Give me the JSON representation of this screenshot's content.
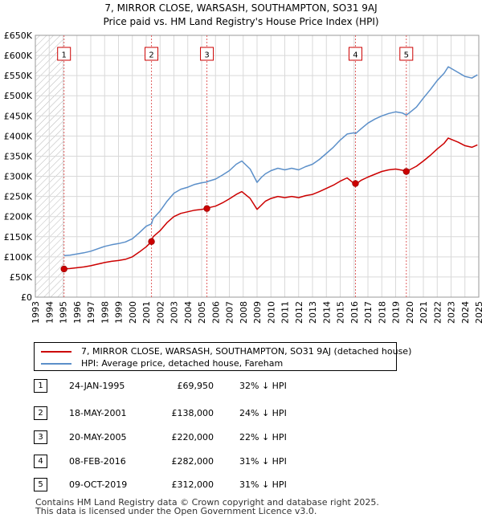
{
  "chart_data": {
    "type": "line",
    "title": "7, MIRROR CLOSE, WARSASH, SOUTHAMPTON, SO31 9AJ",
    "subtitle": "Price paid vs. HM Land Registry's House Price Index (HPI)",
    "xlabel": "",
    "ylabel": "",
    "xlim": [
      1993,
      2025
    ],
    "ylim": [
      0,
      650000
    ],
    "y_ticks": [
      0,
      50000,
      100000,
      150000,
      200000,
      250000,
      300000,
      350000,
      400000,
      450000,
      500000,
      550000,
      600000,
      650000
    ],
    "y_tick_labels": [
      "£0",
      "£50K",
      "£100K",
      "£150K",
      "£200K",
      "£250K",
      "£300K",
      "£350K",
      "£400K",
      "£450K",
      "£500K",
      "£550K",
      "£600K",
      "£650K"
    ],
    "x_ticks": [
      1993,
      1994,
      1995,
      1996,
      1997,
      1998,
      1999,
      2000,
      2001,
      2002,
      2003,
      2004,
      2005,
      2006,
      2007,
      2008,
      2009,
      2010,
      2011,
      2012,
      2013,
      2014,
      2015,
      2016,
      2017,
      2018,
      2019,
      2020,
      2021,
      2022,
      2023,
      2024,
      2025
    ],
    "x_tick_labels": [
      "1993",
      "1994",
      "1995",
      "1996",
      "1997",
      "1998",
      "1999",
      "2000",
      "2001",
      "2002",
      "2003",
      "2004",
      "2005",
      "2006",
      "2007",
      "2008",
      "2009",
      "2010",
      "2011",
      "2012",
      "2013",
      "2014",
      "2015",
      "2016",
      "2017",
      "2018",
      "2019",
      "2020",
      "2021",
      "2022",
      "2023",
      "2024",
      "2025"
    ],
    "grid": true,
    "hatched_until": 1995.07,
    "series": [
      {
        "name": "7, MIRROR CLOSE, WARSASH, SOUTHAMPTON, SO31 9AJ (detached house)",
        "color": "#cc0000",
        "x": [
          1995.07,
          1995.5,
          1996.0,
          1996.5,
          1997.0,
          1997.5,
          1998.0,
          1998.5,
          1999.0,
          1999.5,
          2000.0,
          2000.5,
          2001.0,
          2001.38,
          2001.5,
          2002.0,
          2002.5,
          2003.0,
          2003.5,
          2004.0,
          2004.5,
          2005.0,
          2005.38,
          2005.5,
          2006.0,
          2006.5,
          2007.0,
          2007.5,
          2007.9,
          2008.5,
          2009.0,
          2009.3,
          2009.6,
          2010.0,
          2010.5,
          2011.0,
          2011.5,
          2012.0,
          2012.5,
          2013.0,
          2013.5,
          2014.0,
          2014.5,
          2015.0,
          2015.5,
          2016.0,
          2016.1,
          2016.5,
          2017.0,
          2017.5,
          2018.0,
          2018.5,
          2019.0,
          2019.5,
          2019.77,
          2020.0,
          2020.5,
          2021.0,
          2021.5,
          2022.0,
          2022.5,
          2022.8,
          2023.0,
          2023.5,
          2024.0,
          2024.5,
          2024.9
        ],
        "values": [
          69950,
          71000,
          73000,
          75000,
          78000,
          82000,
          86000,
          89000,
          91000,
          94000,
          100000,
          112000,
          125000,
          138000,
          150000,
          165000,
          185000,
          200000,
          208000,
          212000,
          216000,
          218000,
          220000,
          222000,
          226000,
          234000,
          244000,
          255000,
          262000,
          245000,
          218000,
          228000,
          238000,
          245000,
          250000,
          247000,
          250000,
          247000,
          252000,
          255000,
          262000,
          270000,
          278000,
          288000,
          296000,
          282000,
          280000,
          290000,
          298000,
          305000,
          312000,
          316000,
          318000,
          315000,
          312000,
          316000,
          325000,
          338000,
          352000,
          368000,
          382000,
          395000,
          392000,
          385000,
          376000,
          372000,
          378000
        ]
      },
      {
        "name": "HPI: Average price, detached house, Fareham",
        "color": "#5b8fc9",
        "x": [
          1995.07,
          1995.5,
          1996.0,
          1996.5,
          1997.0,
          1997.5,
          1998.0,
          1998.5,
          1999.0,
          1999.5,
          2000.0,
          2000.5,
          2001.0,
          2001.38,
          2001.5,
          2002.0,
          2002.5,
          2003.0,
          2003.5,
          2004.0,
          2004.5,
          2005.0,
          2005.38,
          2005.5,
          2006.0,
          2006.5,
          2007.0,
          2007.5,
          2007.9,
          2008.5,
          2009.0,
          2009.3,
          2009.6,
          2010.0,
          2010.5,
          2011.0,
          2011.5,
          2012.0,
          2012.5,
          2013.0,
          2013.5,
          2014.0,
          2014.5,
          2015.0,
          2015.5,
          2016.0,
          2016.1,
          2016.5,
          2017.0,
          2017.5,
          2018.0,
          2018.5,
          2019.0,
          2019.5,
          2019.77,
          2020.0,
          2020.5,
          2021.0,
          2021.5,
          2022.0,
          2022.5,
          2022.8,
          2023.0,
          2023.5,
          2024.0,
          2024.5,
          2024.9
        ],
        "values": [
          103000,
          104000,
          107000,
          110000,
          114000,
          120000,
          126000,
          130000,
          133000,
          137000,
          145000,
          160000,
          176000,
          182000,
          195000,
          214000,
          238000,
          258000,
          268000,
          273000,
          280000,
          284000,
          286000,
          288000,
          293000,
          303000,
          314000,
          330000,
          338000,
          318000,
          285000,
          297000,
          306000,
          314000,
          320000,
          316000,
          320000,
          316000,
          324000,
          330000,
          342000,
          357000,
          372000,
          390000,
          405000,
          408000,
          406000,
          418000,
          432000,
          442000,
          450000,
          456000,
          460000,
          457000,
          452000,
          458000,
          472000,
          494000,
          515000,
          538000,
          556000,
          572000,
          568000,
          558000,
          548000,
          544000,
          552000
        ]
      }
    ],
    "sales": [
      {
        "n": "1",
        "x": 1995.07,
        "value": 69950
      },
      {
        "n": "2",
        "x": 2001.38,
        "value": 138000
      },
      {
        "n": "3",
        "x": 2005.38,
        "value": 220000
      },
      {
        "n": "4",
        "x": 2016.1,
        "value": 282000
      },
      {
        "n": "5",
        "x": 2019.77,
        "value": 312000
      }
    ]
  },
  "title": {
    "line1": "7, MIRROR CLOSE, WARSASH, SOUTHAMPTON, SO31 9AJ",
    "line2": "Price paid vs. HM Land Registry's House Price Index (HPI)"
  },
  "legend": {
    "items": [
      {
        "label": "7, MIRROR CLOSE, WARSASH, SOUTHAMPTON, SO31 9AJ (detached house)",
        "color": "#cc0000"
      },
      {
        "label": "HPI: Average price, detached house, Fareham",
        "color": "#5b8fc9"
      }
    ]
  },
  "transactions": [
    {
      "n": "1",
      "date": "24-JAN-1995",
      "price": "£69,950",
      "hpi": "32% ↓ HPI"
    },
    {
      "n": "2",
      "date": "18-MAY-2001",
      "price": "£138,000",
      "hpi": "24% ↓ HPI"
    },
    {
      "n": "3",
      "date": "20-MAY-2005",
      "price": "£220,000",
      "hpi": "22% ↓ HPI"
    },
    {
      "n": "4",
      "date": "08-FEB-2016",
      "price": "£282,000",
      "hpi": "31% ↓ HPI"
    },
    {
      "n": "5",
      "date": "09-OCT-2019",
      "price": "£312,000",
      "hpi": "31% ↓ HPI"
    }
  ],
  "footer": {
    "line1": "Contains HM Land Registry data © Crown copyright and database right 2025.",
    "line2": "This data is licensed under the Open Government Licence v3.0."
  }
}
